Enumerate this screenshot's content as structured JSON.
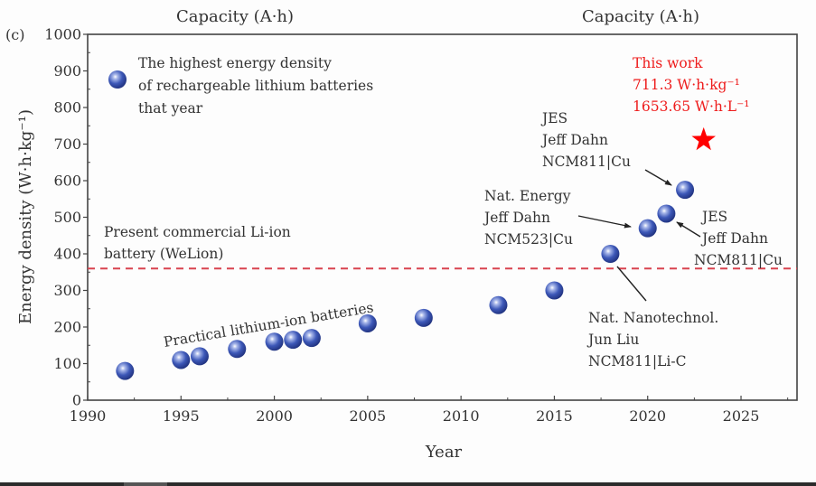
{
  "chart_data": {
    "type": "scatter",
    "panel_label": "(c)",
    "top_labels": [
      "Capacity (A·h)",
      "Capacity (A·h)"
    ],
    "xlabel": "Year",
    "ylabel": "Energy density (W·h·kg⁻¹)",
    "xlim": [
      1990,
      2028
    ],
    "ylim": [
      0,
      1000
    ],
    "xticks": [
      1990,
      1995,
      2000,
      2005,
      2010,
      2015,
      2020,
      2025
    ],
    "yticks": [
      0,
      100,
      200,
      300,
      400,
      500,
      600,
      700,
      800,
      900,
      1000
    ],
    "grid": false,
    "legend": {
      "position": "top-left",
      "lines": [
        "The highest energy density",
        "of rechargeable lithium batteries",
        "that year"
      ]
    },
    "series": [
      {
        "name": "The highest energy density of rechargeable lithium batteries that year",
        "marker": "sphere",
        "color": "#3a55b0",
        "points": [
          {
            "x": 1992,
            "y": 80
          },
          {
            "x": 1995,
            "y": 110
          },
          {
            "x": 1996,
            "y": 120
          },
          {
            "x": 1998,
            "y": 140
          },
          {
            "x": 2000,
            "y": 160
          },
          {
            "x": 2001,
            "y": 165
          },
          {
            "x": 2002,
            "y": 170
          },
          {
            "x": 2005,
            "y": 210
          },
          {
            "x": 2008,
            "y": 225
          },
          {
            "x": 2012,
            "y": 260
          },
          {
            "x": 2015,
            "y": 300
          },
          {
            "x": 2018,
            "y": 400
          },
          {
            "x": 2020,
            "y": 470
          },
          {
            "x": 2021,
            "y": 510
          },
          {
            "x": 2022,
            "y": 575
          }
        ]
      },
      {
        "name": "This work",
        "marker": "star",
        "color": "#ff0000",
        "points": [
          {
            "x": 2023,
            "y": 711.3
          }
        ]
      }
    ],
    "reference_line": {
      "y": 360,
      "style": "dashed",
      "color": "#d9434f",
      "label_lines": [
        "Present commercial Li-ion",
        "battery (WeLion)"
      ]
    },
    "annotations": {
      "trend_label": "Practical lithium-ion batteries",
      "this_work": {
        "color": "#ee1c1c",
        "lines": [
          "This work",
          "711.3 W·h·kg⁻¹",
          "1653.65 W·h·L⁻¹"
        ]
      },
      "callouts": [
        {
          "target_year": 2022,
          "lines": [
            "JES",
            "Jeff Dahn",
            "NCM811|Cu"
          ]
        },
        {
          "target_year": 2020,
          "lines": [
            "Nat. Energy",
            "Jeff Dahn",
            "NCM523|Cu"
          ]
        },
        {
          "target_year": 2021,
          "lines": [
            "JES",
            "Jeff Dahn",
            "NCM811|Cu"
          ]
        },
        {
          "target_year": 2018,
          "lines": [
            "Nat. Nanotechnol.",
            "Jun Liu",
            "NCM811|Li-C"
          ]
        }
      ]
    }
  }
}
